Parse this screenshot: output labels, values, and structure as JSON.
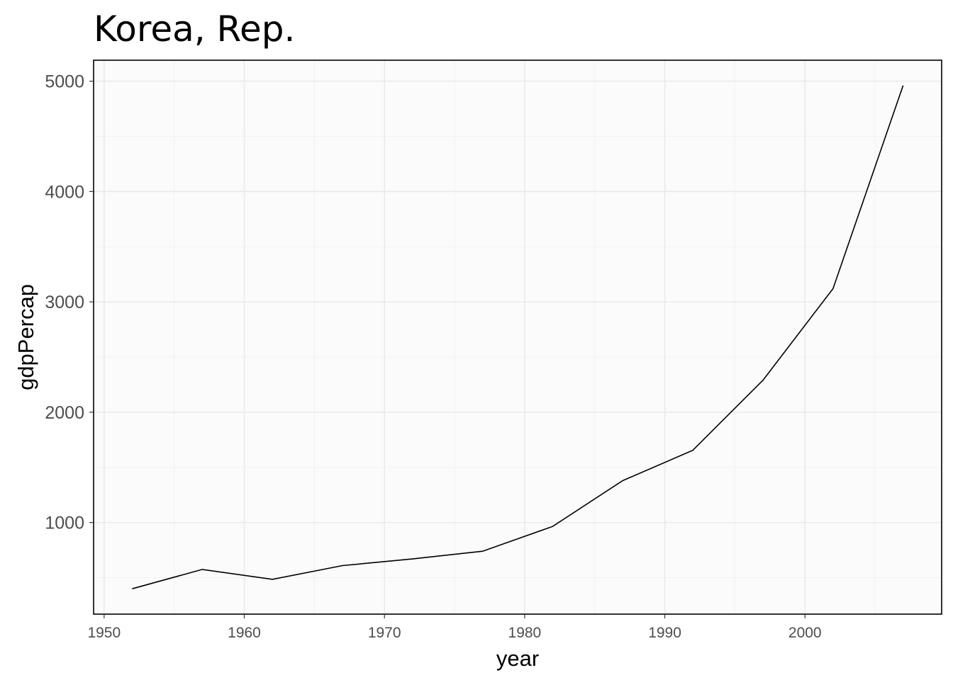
{
  "chart_data": {
    "type": "line",
    "title": "Korea, Rep.",
    "xlabel": "year",
    "ylabel": "gdpPercap",
    "x": [
      1952,
      1957,
      1962,
      1967,
      1972,
      1977,
      1982,
      1987,
      1992,
      1997,
      2002,
      2007
    ],
    "series": [
      {
        "values": [
          400,
          575,
          485,
          610,
          670,
          740,
          965,
          1380,
          1655,
          2290,
          3120,
          4960
        ]
      }
    ],
    "x_ticks": [
      "1950",
      "1960",
      "1970",
      "1980",
      "1990",
      "2000"
    ],
    "y_ticks": [
      "1000",
      "2000",
      "3000",
      "4000",
      "5000"
    ],
    "xlim": [
      1949.25,
      2009.75
    ],
    "ylim": [
      170,
      5190
    ],
    "grid": true,
    "colors": {
      "panel_background": "#fbfbfb",
      "grid_major": "#e8e8e8",
      "grid_minor": "#f1f1f1",
      "line": "#000000",
      "panel_border": "#000000"
    }
  }
}
